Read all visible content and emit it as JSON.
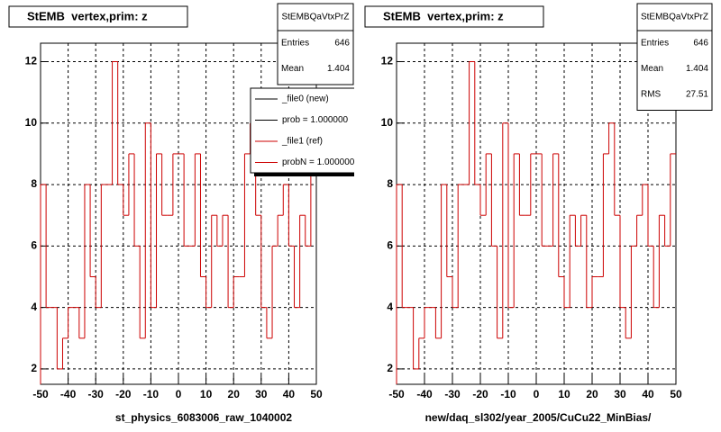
{
  "chart_data": [
    {
      "type": "histogram",
      "title": "StEMB  vertex,prim: z",
      "xlabel": "st_physics_6083006_raw_1040002",
      "color": "#cc0000",
      "stats": {
        "name": "StEMBQaVtxPrZ",
        "rows": [
          {
            "label": "Entries",
            "value": 646
          },
          {
            "label": "Mean",
            "value": 1.404
          }
        ]
      },
      "legend": [
        {
          "label": "_file0 (new)",
          "color": "#000000"
        },
        {
          "label": "prob = 1.000000",
          "color": "#000000"
        },
        {
          "label": "_file1 (ref)",
          "color": "#cc0000"
        },
        {
          "label": "probN = 1.000000",
          "color": "#cc0000"
        }
      ],
      "bins": [
        -50,
        -48,
        -46,
        -44,
        -42,
        -40,
        -38,
        -36,
        -34,
        -32,
        -30,
        -28,
        -26,
        -24,
        -22,
        -20,
        -18,
        -16,
        -14,
        -12,
        -10,
        -8,
        -6,
        -4,
        -2,
        0,
        2,
        4,
        6,
        8,
        10,
        12,
        14,
        16,
        18,
        20,
        22,
        24,
        26,
        28,
        30,
        32,
        34,
        36,
        38,
        40,
        42,
        44,
        46,
        48,
        50
      ],
      "counts": [
        8,
        4,
        4,
        2,
        3,
        4,
        4,
        3,
        8,
        5,
        4,
        8,
        8,
        12,
        8,
        7,
        9,
        6,
        3,
        10,
        4,
        9,
        7,
        7,
        9,
        9,
        6,
        6,
        9,
        5,
        4,
        7,
        6,
        7,
        4,
        5,
        5,
        9,
        10,
        7,
        4,
        3,
        6,
        7,
        8,
        6,
        4,
        7,
        6,
        9
      ],
      "xlim": [
        -50,
        50
      ],
      "ylim": [
        1.5,
        12.6
      ],
      "xticks": [
        -50,
        -40,
        -30,
        -20,
        -10,
        0,
        10,
        20,
        30,
        40,
        50
      ],
      "yticks": [
        2,
        4,
        6,
        8,
        10,
        12
      ],
      "grid": true
    },
    {
      "type": "histogram",
      "title": "StEMB  vertex,prim: z",
      "xlabel": "new/daq_sl302/year_2005/CuCu22_MinBias/",
      "color": "#cc0000",
      "stats": {
        "name": "StEMBQaVtxPrZ",
        "rows": [
          {
            "label": "Entries",
            "value": 646
          },
          {
            "label": "Mean",
            "value": 1.404
          },
          {
            "label": "RMS",
            "value": 27.51
          }
        ]
      },
      "bins": [
        -50,
        -48,
        -46,
        -44,
        -42,
        -40,
        -38,
        -36,
        -34,
        -32,
        -30,
        -28,
        -26,
        -24,
        -22,
        -20,
        -18,
        -16,
        -14,
        -12,
        -10,
        -8,
        -6,
        -4,
        -2,
        0,
        2,
        4,
        6,
        8,
        10,
        12,
        14,
        16,
        18,
        20,
        22,
        24,
        26,
        28,
        30,
        32,
        34,
        36,
        38,
        40,
        42,
        44,
        46,
        48,
        50
      ],
      "counts": [
        8,
        4,
        4,
        2,
        3,
        4,
        4,
        3,
        8,
        5,
        4,
        8,
        8,
        12,
        8,
        7,
        9,
        6,
        3,
        10,
        4,
        9,
        7,
        7,
        9,
        9,
        6,
        6,
        9,
        5,
        4,
        7,
        6,
        7,
        4,
        5,
        5,
        9,
        10,
        7,
        4,
        3,
        6,
        7,
        8,
        6,
        4,
        7,
        6,
        9
      ],
      "xlim": [
        -50,
        50
      ],
      "ylim": [
        1.5,
        12.6
      ],
      "xticks": [
        -50,
        -40,
        -30,
        -20,
        -10,
        0,
        10,
        20,
        30,
        40,
        50
      ],
      "yticks": [
        2,
        4,
        6,
        8,
        10,
        12
      ],
      "grid": true
    }
  ]
}
